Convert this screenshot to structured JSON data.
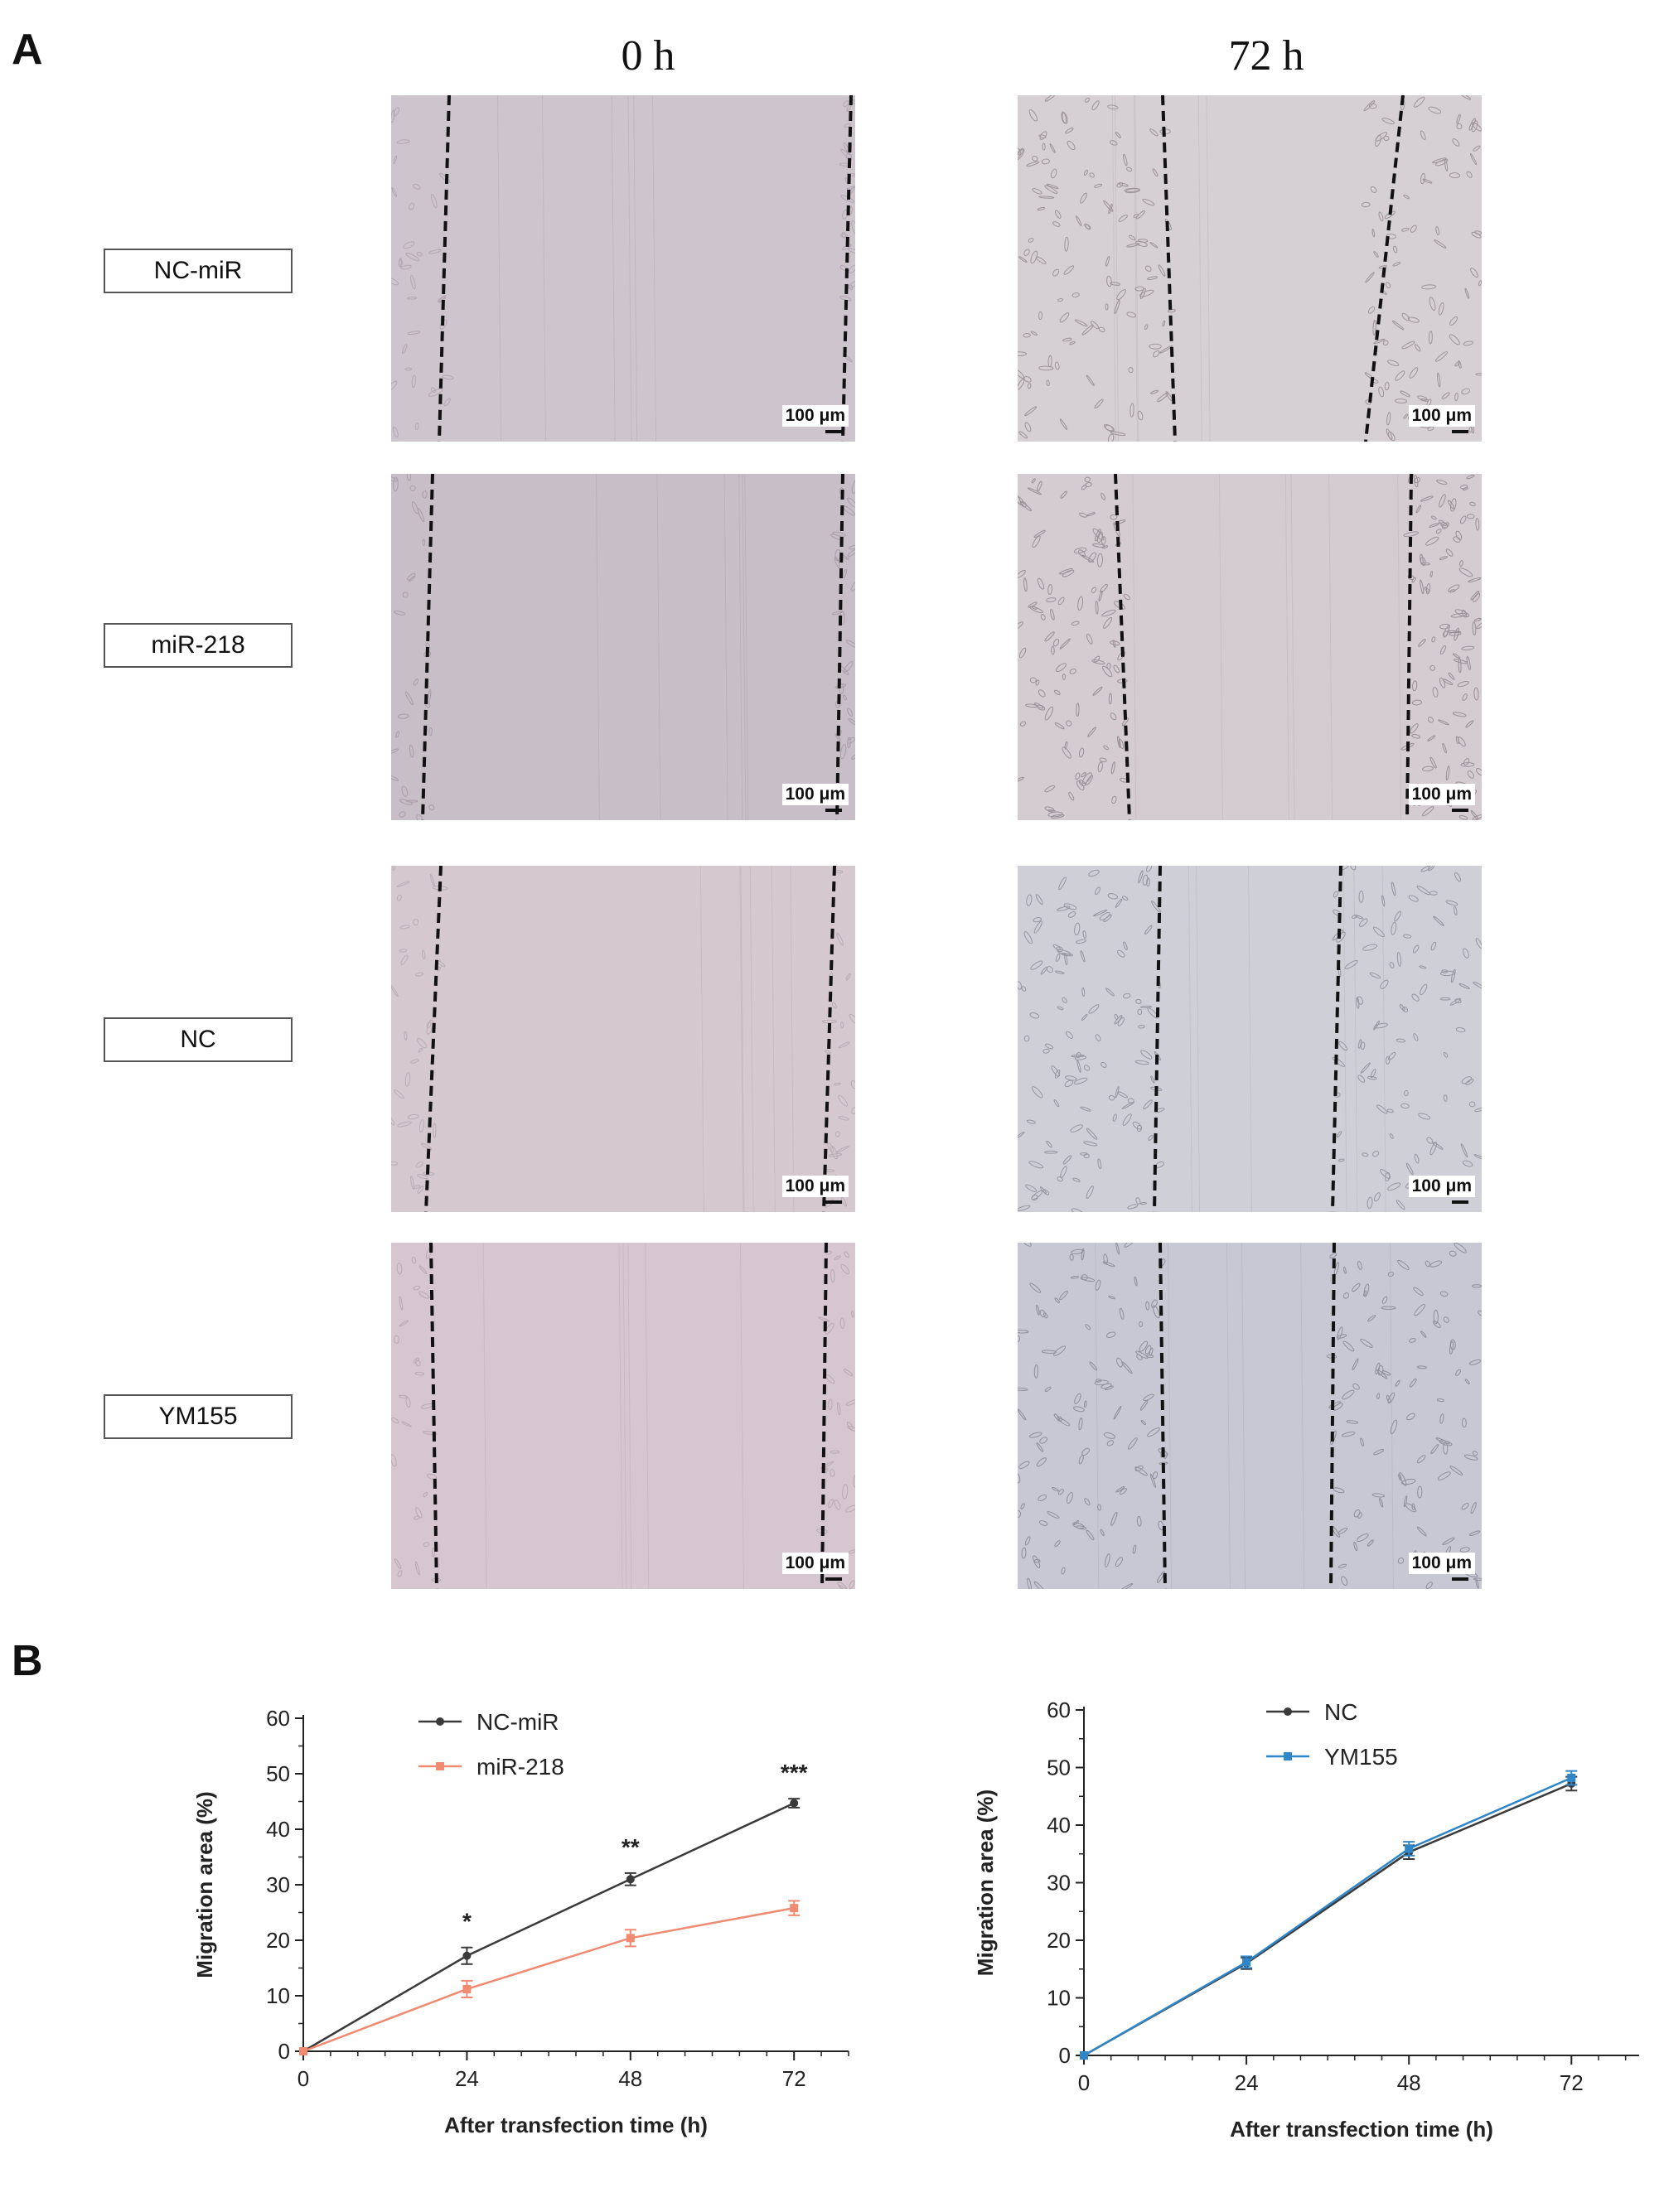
{
  "panel_a": {
    "letter": "A",
    "col_headers": [
      "0 h",
      "72 h"
    ],
    "row_labels": [
      "NC-miR",
      "miR-218",
      "NC",
      "YM155"
    ],
    "scale_bar": "100 μm"
  },
  "panel_b": {
    "letter": "B"
  },
  "colors": {
    "nc": "#3a3a3a",
    "mir218": "#f08a70",
    "ym155": "#2f86c8"
  },
  "chart_data": [
    {
      "type": "line",
      "xlabel": "After transfection time (h)",
      "ylabel": "Migration area (%)",
      "x": [
        0,
        24,
        48,
        72
      ],
      "xlim": [
        0,
        80
      ],
      "ylim": [
        0,
        60
      ],
      "xticks": [
        0,
        24,
        48,
        72
      ],
      "yticks": [
        0,
        10,
        20,
        30,
        40,
        50,
        60
      ],
      "legend_position": "top-left",
      "series": [
        {
          "name": "NC-miR",
          "color": "#3a3a3a",
          "values": [
            0,
            17.2,
            31.0,
            44.7
          ],
          "errors": [
            0,
            1.5,
            1.1,
            0.8
          ]
        },
        {
          "name": "miR-218",
          "color": "#f08a70",
          "values": [
            0,
            11.2,
            20.4,
            25.8
          ],
          "errors": [
            0,
            1.5,
            1.5,
            1.3
          ]
        }
      ],
      "annotations": [
        {
          "x": 24,
          "label": "*"
        },
        {
          "x": 48,
          "label": "**"
        },
        {
          "x": 72,
          "label": "***"
        }
      ]
    },
    {
      "type": "line",
      "xlabel": "After transfection time (h)",
      "ylabel": "Migration area (%)",
      "x": [
        0,
        24,
        48,
        72
      ],
      "xlim": [
        0,
        82
      ],
      "ylim": [
        0,
        60
      ],
      "xticks": [
        0,
        24,
        48,
        72
      ],
      "yticks": [
        0,
        10,
        20,
        30,
        40,
        50,
        60
      ],
      "legend_position": "top-left",
      "series": [
        {
          "name": "NC",
          "color": "#3a3a3a",
          "values": [
            0,
            16.0,
            35.3,
            47.2
          ],
          "errors": [
            0,
            1.0,
            1.2,
            1.2
          ]
        },
        {
          "name": "YM155",
          "color": "#2f86c8",
          "values": [
            0,
            16.2,
            35.9,
            48.2
          ],
          "errors": [
            0,
            1.0,
            1.2,
            1.2
          ]
        }
      ],
      "annotations": []
    }
  ]
}
